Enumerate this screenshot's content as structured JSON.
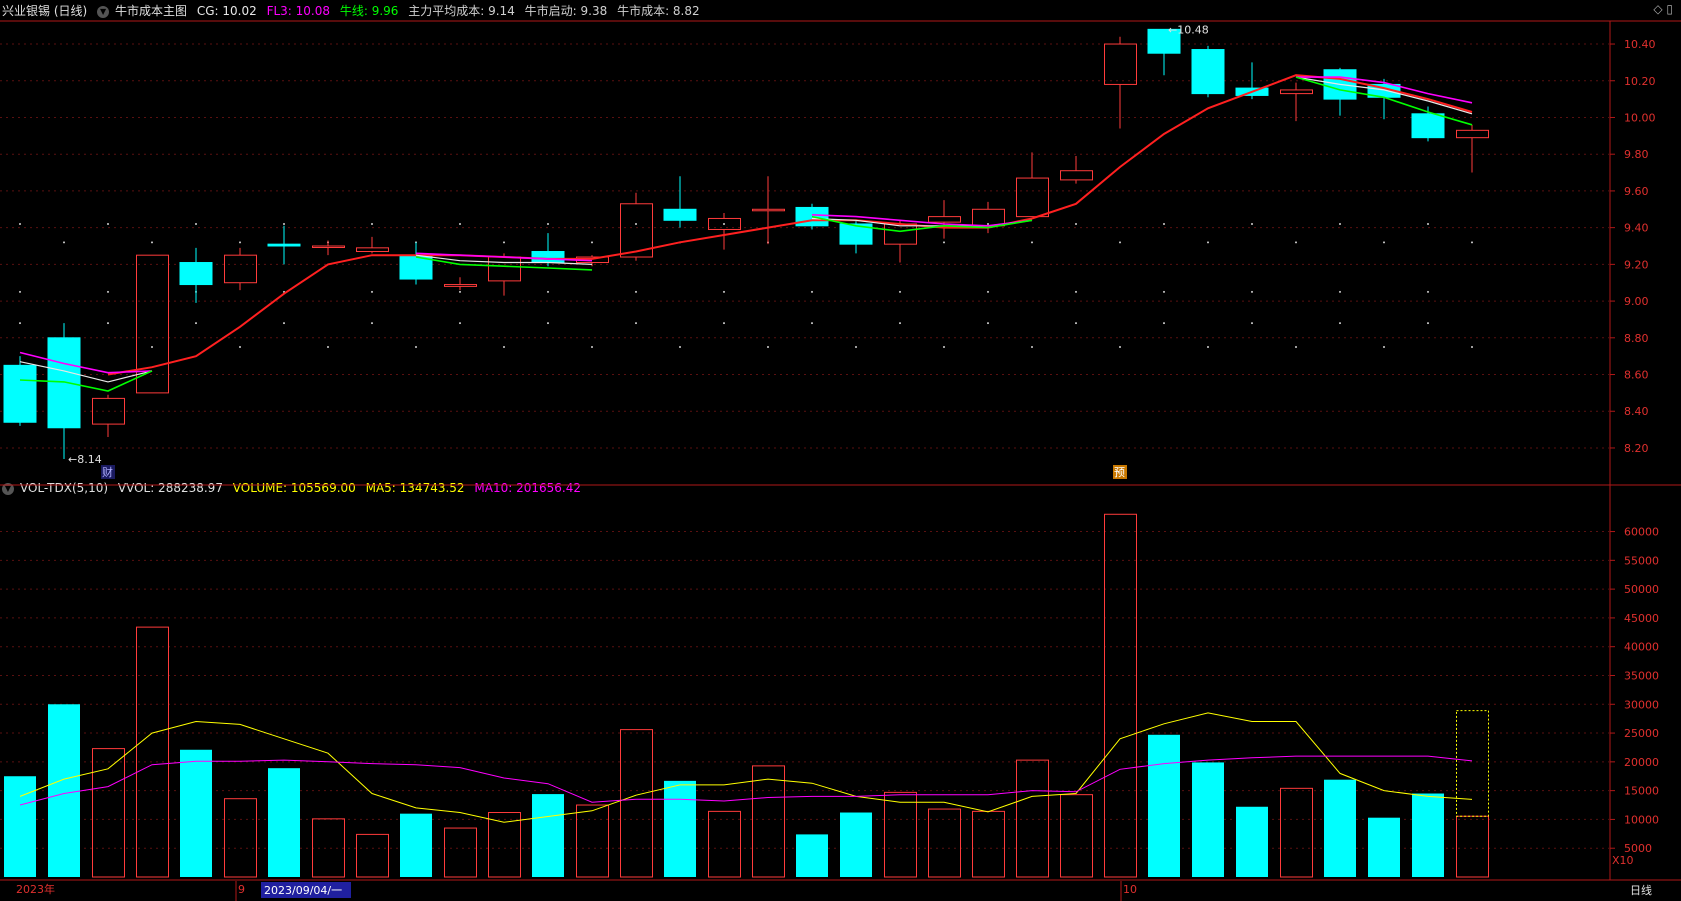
{
  "header": {
    "stock": "兴业银锡 (日线)",
    "indicator": "牛市成本主图",
    "cg": "CG: 10.02",
    "fl3": "FL3: 10.08",
    "niuxian": "牛线: 9.96",
    "zhuli": "主力平均成本: 9.14",
    "qidong": "牛市启动: 9.38",
    "chengben": "牛市成本: 8.82"
  },
  "vol_header": {
    "name": "VOL-TDX(5,10)",
    "vvol": "VVOL: 288238.97",
    "volume": "VOLUME: 105569.00",
    "ma5": "MA5: 134743.52",
    "ma10": "MA10: 201656.42"
  },
  "corner_icons": "◇ ▯",
  "colors": {
    "up": "#ff3b3b",
    "down": "#00ffff",
    "ma_red": "#ff2020",
    "cg_white": "#e8e8e8",
    "fl3_magenta": "#ff00ff",
    "niuxian_green": "#00ff00",
    "vol_ma5": "#ffff00",
    "vol_ma10": "#ff00ff",
    "grid": "#5a1010",
    "axis": "#b01818"
  },
  "chart_data": [
    {
      "type": "candlestick",
      "ylim": [
        8.08,
        10.52
      ],
      "yticks": [
        8.2,
        8.4,
        8.6,
        8.8,
        9.0,
        9.2,
        9.4,
        9.6,
        9.8,
        10.0,
        10.2,
        10.4
      ],
      "candles": [
        {
          "o": 8.65,
          "c": 8.34,
          "h": 8.7,
          "l": 8.32
        },
        {
          "o": 8.8,
          "c": 8.31,
          "h": 8.88,
          "l": 8.14
        },
        {
          "o": 8.33,
          "c": 8.47,
          "h": 8.49,
          "l": 8.26
        },
        {
          "o": 8.5,
          "c": 9.25,
          "h": 9.25,
          "l": 8.5
        },
        {
          "o": 9.21,
          "c": 9.09,
          "h": 9.29,
          "l": 8.99
        },
        {
          "o": 9.1,
          "c": 9.25,
          "h": 9.29,
          "l": 9.06
        },
        {
          "o": 9.31,
          "c": 9.3,
          "h": 9.41,
          "l": 9.2
        },
        {
          "o": 9.3,
          "c": 9.3,
          "h": 9.33,
          "l": 9.25
        },
        {
          "o": 9.27,
          "c": 9.29,
          "h": 9.35,
          "l": 9.26
        },
        {
          "o": 9.25,
          "c": 9.12,
          "h": 9.32,
          "l": 9.09
        },
        {
          "o": 9.08,
          "c": 9.09,
          "h": 9.13,
          "l": 9.06
        },
        {
          "o": 9.11,
          "c": 9.24,
          "h": 9.26,
          "l": 9.03
        },
        {
          "o": 9.27,
          "c": 9.21,
          "h": 9.37,
          "l": 9.19
        },
        {
          "o": 9.21,
          "c": 9.24,
          "h": 9.25,
          "l": 9.19
        },
        {
          "o": 9.24,
          "c": 9.53,
          "h": 9.59,
          "l": 9.22
        },
        {
          "o": 9.5,
          "c": 9.44,
          "h": 9.68,
          "l": 9.4
        },
        {
          "o": 9.39,
          "c": 9.45,
          "h": 9.48,
          "l": 9.28
        },
        {
          "o": 9.5,
          "c": 9.5,
          "h": 9.68,
          "l": 9.31
        },
        {
          "o": 9.51,
          "c": 9.41,
          "h": 9.53,
          "l": 9.39
        },
        {
          "o": 9.42,
          "c": 9.31,
          "h": 9.44,
          "l": 9.26
        },
        {
          "o": 9.31,
          "c": 9.42,
          "h": 9.44,
          "l": 9.21
        },
        {
          "o": 9.43,
          "c": 9.46,
          "h": 9.55,
          "l": 9.34
        },
        {
          "o": 9.41,
          "c": 9.5,
          "h": 9.54,
          "l": 9.37
        },
        {
          "o": 9.46,
          "c": 9.67,
          "h": 9.81,
          "l": 9.46
        },
        {
          "o": 9.66,
          "c": 9.71,
          "h": 9.79,
          "l": 9.64
        },
        {
          "o": 10.18,
          "c": 10.4,
          "h": 10.44,
          "l": 9.94
        },
        {
          "o": 10.48,
          "c": 10.35,
          "h": 10.48,
          "l": 10.23
        },
        {
          "o": 10.37,
          "c": 10.13,
          "h": 10.39,
          "l": 10.11
        },
        {
          "o": 10.16,
          "c": 10.12,
          "h": 10.3,
          "l": 10.1
        },
        {
          "o": 10.13,
          "c": 10.15,
          "h": 10.19,
          "l": 9.98
        },
        {
          "o": 10.26,
          "c": 10.1,
          "h": 10.27,
          "l": 10.01
        },
        {
          "o": 10.18,
          "c": 10.11,
          "h": 10.21,
          "l": 9.99
        },
        {
          "o": 10.02,
          "c": 9.89,
          "h": 10.06,
          "l": 9.87
        },
        {
          "o": 9.89,
          "c": 9.93,
          "h": 9.96,
          "l": 9.7
        }
      ],
      "bull_cost_line": [
        null,
        null,
        8.6,
        8.64,
        8.7,
        8.86,
        9.04,
        9.2,
        9.25,
        9.25,
        9.25,
        9.24,
        9.23,
        9.23,
        9.27,
        9.32,
        9.36,
        9.4,
        9.44,
        9.44,
        9.42,
        9.4,
        9.4,
        9.45,
        9.53,
        9.73,
        9.91,
        10.05,
        10.14,
        10.23,
        10.21,
        10.16,
        10.1,
        10.03
      ],
      "cg_line": [
        8.67,
        8.62,
        8.56,
        8.62,
        null,
        null,
        null,
        null,
        null,
        9.25,
        9.22,
        9.21,
        9.21,
        9.2,
        null,
        null,
        null,
        null,
        9.45,
        9.44,
        9.41,
        9.41,
        9.41,
        9.44,
        null,
        null,
        null,
        null,
        null,
        10.22,
        10.18,
        10.15,
        10.09,
        10.02
      ],
      "fl3_line": [
        8.72,
        8.66,
        8.61,
        8.62,
        null,
        null,
        null,
        null,
        null,
        9.26,
        9.25,
        9.24,
        9.23,
        9.22,
        null,
        null,
        null,
        null,
        9.47,
        9.46,
        9.44,
        9.42,
        9.41,
        9.44,
        null,
        null,
        null,
        null,
        null,
        10.22,
        10.22,
        10.19,
        10.13,
        10.08
      ],
      "niuxian_line": [
        8.57,
        8.56,
        8.51,
        8.62,
        null,
        null,
        null,
        null,
        null,
        9.24,
        9.2,
        9.19,
        9.18,
        9.17,
        null,
        null,
        null,
        null,
        9.46,
        9.41,
        9.38,
        9.41,
        9.4,
        9.44,
        null,
        null,
        null,
        null,
        null,
        10.22,
        10.15,
        10.11,
        10.03,
        9.96
      ],
      "annotations": [
        {
          "text": "8.14",
          "index": 1,
          "value": 8.14
        },
        {
          "text": "10.48",
          "index": 26,
          "value": 10.48
        }
      ],
      "markers": [
        {
          "text": "财",
          "index": 2
        },
        {
          "text": "预",
          "index": 25
        }
      ]
    },
    {
      "type": "bar",
      "ylim": [
        0,
        66000
      ],
      "yticks": [
        5000,
        10000,
        15000,
        20000,
        25000,
        30000,
        35000,
        40000,
        45000,
        50000,
        55000,
        60000
      ],
      "values": [
        17500,
        30000,
        22300,
        43400,
        22100,
        13600,
        18900,
        10100,
        7400,
        11000,
        8500,
        11200,
        14400,
        12500,
        25600,
        16700,
        11400,
        19300,
        7400,
        11200,
        14700,
        11800,
        11400,
        20300,
        14300,
        63000,
        24700,
        19900,
        12200,
        15400,
        16900,
        10300,
        14500,
        10556
      ],
      "ma5": [
        14000,
        17000,
        18800,
        25000,
        27000,
        26500,
        24000,
        21500,
        14500,
        12000,
        11200,
        9500,
        10500,
        11500,
        14200,
        16000,
        16000,
        17000,
        16300,
        14000,
        13000,
        13000,
        11300,
        14000,
        14500,
        24000,
        26600,
        28500,
        27000,
        27000,
        18000,
        15000,
        14000,
        13474
      ],
      "ma10": [
        12500,
        14500,
        15700,
        19500,
        20100,
        20100,
        20300,
        20000,
        19700,
        19500,
        19000,
        17200,
        16200,
        13000,
        13500,
        13500,
        13200,
        13800,
        14000,
        14000,
        14300,
        14300,
        14300,
        15000,
        14800,
        18700,
        19700,
        20300,
        20700,
        21000,
        21000,
        21000,
        21000,
        20166
      ],
      "date_labels": {
        "year": "2023年",
        "month9": "9",
        "cursor_date": "2023/09/04/一",
        "month10": "10",
        "period": "日线",
        "scale": "X10"
      }
    }
  ]
}
